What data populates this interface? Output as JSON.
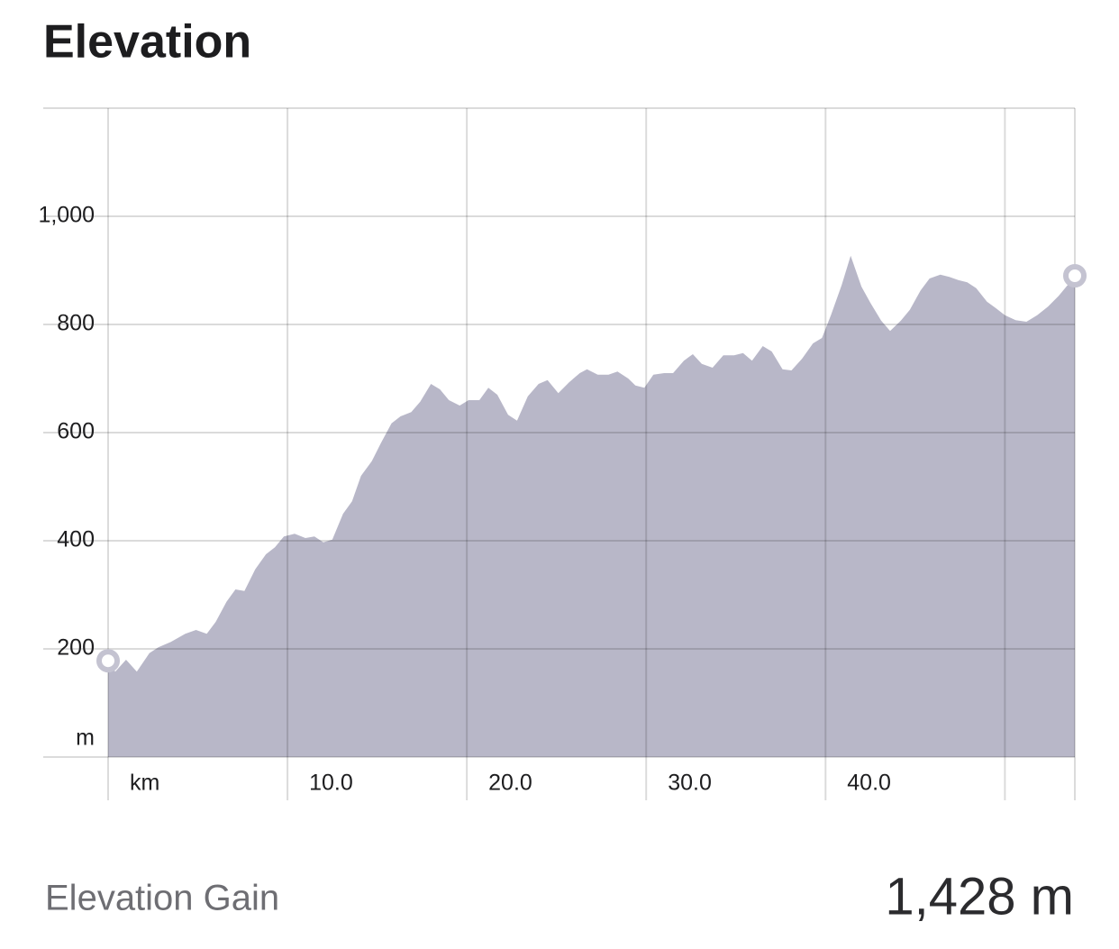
{
  "header": {
    "title": "Elevation"
  },
  "chart_data": {
    "type": "area",
    "color": "#b8b7c8",
    "grid": true,
    "x": [
      0,
      0.4,
      1.0,
      1.6,
      2.3,
      2.8,
      3.5,
      4.3,
      4.9,
      5.5,
      6.0,
      6.6,
      7.1,
      7.6,
      8.2,
      8.8,
      9.3,
      9.8,
      10.4,
      11.0,
      11.5,
      12.0,
      12.5,
      13.1,
      13.6,
      14.1,
      14.7,
      15.2,
      15.8,
      16.3,
      16.9,
      17.4,
      18.0,
      18.5,
      19.0,
      19.6,
      20.1,
      20.7,
      21.2,
      21.7,
      22.3,
      22.8,
      23.4,
      24.0,
      24.5,
      25.1,
      25.7,
      26.3,
      26.7,
      27.3,
      27.9,
      28.4,
      29.0,
      29.4,
      29.9,
      30.4,
      31.0,
      31.5,
      32.1,
      32.6,
      33.1,
      33.7,
      34.3,
      34.9,
      35.4,
      35.9,
      36.5,
      37.0,
      37.6,
      38.1,
      38.7,
      39.3,
      39.8,
      40.3,
      40.9,
      41.4,
      42.0,
      42.5,
      43.1,
      43.6,
      44.2,
      44.7,
      45.3,
      45.8,
      46.4,
      46.9,
      47.4,
      47.9,
      48.4,
      49.0,
      49.5,
      50.0,
      50.6,
      51.2,
      51.8,
      52.4,
      53.0,
      53.5,
      53.9
    ],
    "values": [
      178,
      158,
      180,
      158,
      192,
      203,
      213,
      228,
      235,
      228,
      250,
      287,
      310,
      307,
      347,
      375,
      388,
      408,
      413,
      405,
      408,
      397,
      402,
      450,
      473,
      520,
      547,
      580,
      617,
      630,
      638,
      657,
      690,
      680,
      660,
      650,
      660,
      660,
      683,
      670,
      633,
      622,
      667,
      690,
      697,
      673,
      693,
      710,
      717,
      707,
      707,
      713,
      700,
      687,
      683,
      707,
      710,
      710,
      733,
      745,
      727,
      720,
      743,
      743,
      747,
      733,
      760,
      750,
      717,
      715,
      737,
      765,
      775,
      817,
      873,
      927,
      870,
      840,
      807,
      788,
      807,
      827,
      863,
      885,
      892,
      888,
      882,
      878,
      867,
      842,
      830,
      817,
      808,
      805,
      817,
      833,
      853,
      873,
      890
    ],
    "xlim": [
      0,
      53.9
    ],
    "ylim": [
      0,
      1200
    ],
    "xticks": [
      {
        "value": 0,
        "label": "km"
      },
      {
        "value": 10,
        "label": "10.0"
      },
      {
        "value": 20,
        "label": "20.0"
      },
      {
        "value": 30,
        "label": "30.0"
      },
      {
        "value": 40,
        "label": "40.0"
      },
      {
        "value": 50,
        "label": null
      }
    ],
    "yticks": [
      {
        "value": 0,
        "label": "m"
      },
      200,
      400,
      600,
      800,
      {
        "value": 1000,
        "label": "1,000"
      }
    ]
  },
  "stats": {
    "label": "Elevation Gain",
    "value": "1,428 m"
  }
}
